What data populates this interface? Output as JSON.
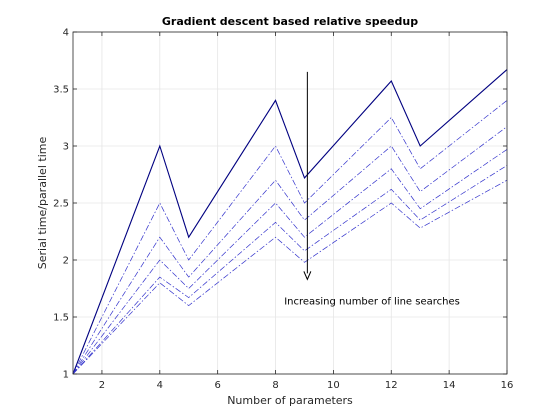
{
  "chart_data": {
    "type": "line",
    "title": "Gradient descent based relative speedup",
    "xlabel": "Number of parameters",
    "ylabel": "Serial time/parallel time",
    "xlim": [
      1,
      16
    ],
    "ylim": [
      1,
      4
    ],
    "xticks": [
      2,
      4,
      6,
      8,
      10,
      12,
      14,
      16
    ],
    "yticks": [
      1,
      1.5,
      2,
      2.5,
      3,
      3.5,
      4
    ],
    "xtick_labels": [
      "2",
      "4",
      "6",
      "8",
      "10",
      "12",
      "14",
      "16"
    ],
    "ytick_labels": [
      "1",
      "1.5",
      "2",
      "2.5",
      "3",
      "3.5",
      "4"
    ],
    "grid": true,
    "x": [
      1,
      4,
      5,
      8,
      9,
      12,
      13,
      16
    ],
    "series": [
      {
        "values": [
          1,
          3.0,
          2.2,
          3.4,
          2.72,
          3.57,
          3.0,
          3.67
        ],
        "style": "solid",
        "color": "#000080"
      },
      {
        "values": [
          1,
          2.5,
          2.0,
          3.0,
          2.5,
          3.25,
          2.8,
          3.4
        ],
        "style": "dashdot",
        "color": "#3333cc"
      },
      {
        "values": [
          1,
          2.2,
          1.85,
          2.7,
          2.35,
          3.0,
          2.6,
          3.17
        ],
        "style": "dashdot",
        "color": "#3333cc"
      },
      {
        "values": [
          1,
          2.0,
          1.75,
          2.5,
          2.2,
          2.8,
          2.45,
          2.97
        ],
        "style": "dashdot",
        "color": "#3333cc"
      },
      {
        "values": [
          1,
          1.85,
          1.67,
          2.33,
          2.08,
          2.62,
          2.35,
          2.83
        ],
        "style": "dashdot",
        "color": "#3333cc"
      },
      {
        "values": [
          1,
          1.8,
          1.6,
          2.2,
          1.98,
          2.5,
          2.28,
          2.7
        ],
        "style": "dashdot",
        "color": "#3333cc"
      }
    ],
    "annotation": {
      "text": "Increasing number of line searches",
      "arrow_x": 9.1,
      "arrow_from_y": 3.65,
      "arrow_to_y": 1.83,
      "text_x": 8.3,
      "text_y": 1.61
    }
  }
}
